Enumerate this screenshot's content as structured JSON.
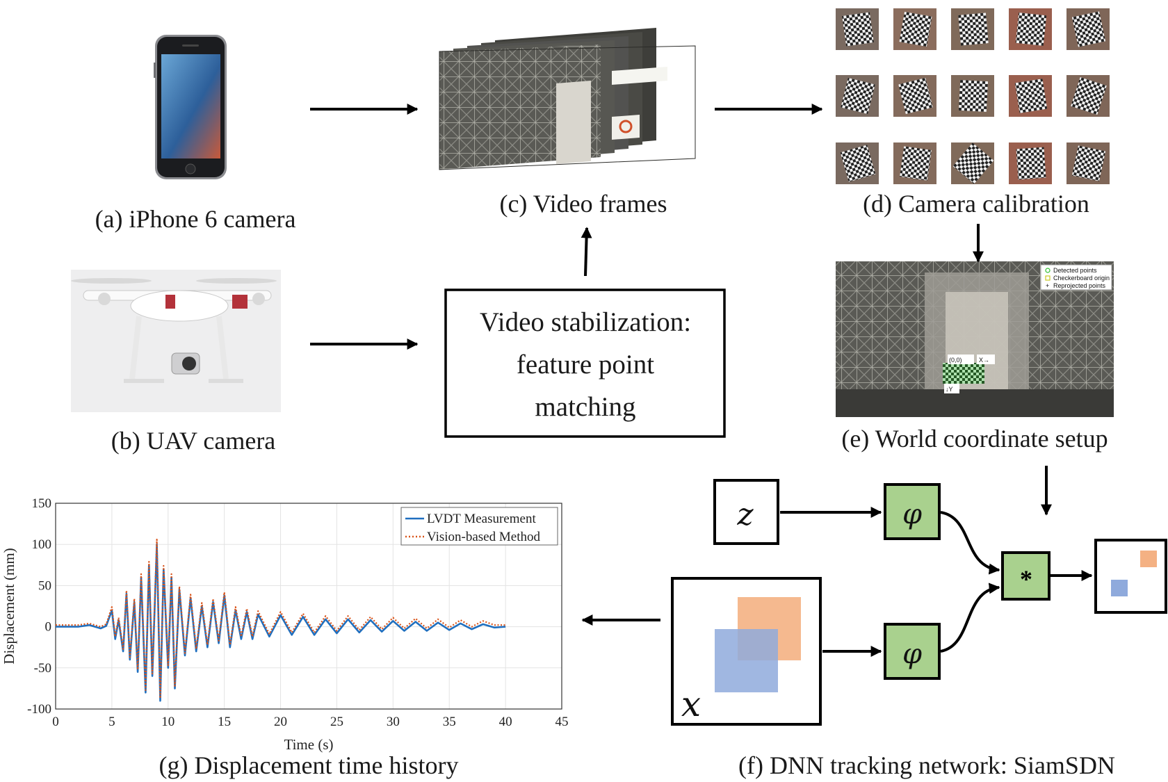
{
  "captions": {
    "a": "(a) iPhone 6 camera",
    "b": "(b) UAV camera",
    "c": "(c) Video frames",
    "d": "(d) Camera calibration",
    "e": "(e) World coordinate setup",
    "f": "(f) DNN tracking network: SiamSDN",
    "g": "(g) Displacement time history"
  },
  "stabilization_box": {
    "line1": "Video stabilization:",
    "line2": "feature point",
    "line3": "matching"
  },
  "siamese": {
    "z_label": "z",
    "x_label": "x",
    "phi_label": "φ",
    "corr_label": "*",
    "colors": {
      "block_fill": "#a9d18e",
      "target_orange": "#f4b183",
      "search_blue": "#8faadc"
    }
  },
  "world_setup": {
    "legend": [
      "Detected points",
      "Checkerboard origin",
      "Reprojected points"
    ],
    "origin_label": "(0,0)",
    "x_axis": "X→",
    "y_axis": "↓Y"
  },
  "chart_data": {
    "type": "line",
    "title": "",
    "xlabel": "Time (s)",
    "ylabel": "Displacement (mm)",
    "xlim": [
      0,
      45
    ],
    "ylim": [
      -100,
      150
    ],
    "xticks": [
      0,
      5,
      10,
      15,
      20,
      25,
      30,
      35,
      40,
      45
    ],
    "yticks": [
      150,
      100,
      50,
      0,
      -50,
      -100
    ],
    "grid": true,
    "legend_position": "top-right",
    "series": [
      {
        "name": "LVDT Measurement",
        "color": "#1f6fbf",
        "style": "solid",
        "x": [
          0,
          2,
          3,
          4,
          4.5,
          5,
          5.3,
          5.6,
          6,
          6.3,
          6.6,
          7,
          7.3,
          7.6,
          8,
          8.3,
          8.6,
          9,
          9.3,
          9.6,
          10,
          10.3,
          10.6,
          11,
          11.5,
          12,
          12.5,
          13,
          13.5,
          14,
          14.5,
          15,
          15.5,
          16,
          16.5,
          17,
          17.5,
          18,
          19,
          20,
          21,
          22,
          23,
          24,
          25,
          26,
          27,
          28,
          29,
          30,
          31,
          32,
          33,
          34,
          35,
          36,
          37,
          38,
          39,
          40
        ],
        "y": [
          0,
          0,
          2,
          -2,
          1,
          20,
          -15,
          8,
          -30,
          40,
          -40,
          30,
          -55,
          60,
          -80,
          75,
          -60,
          100,
          -90,
          70,
          -50,
          60,
          -75,
          45,
          -35,
          35,
          -30,
          25,
          -25,
          30,
          -20,
          38,
          -25,
          20,
          -15,
          18,
          -15,
          15,
          -12,
          14,
          -10,
          12,
          -10,
          9,
          -8,
          9,
          -7,
          8,
          -6,
          7,
          -5,
          6,
          -5,
          5,
          -4,
          4,
          -3,
          3,
          -1,
          0
        ]
      },
      {
        "name": "Vision-based Method",
        "color": "#d95319",
        "style": "dotted",
        "x": [
          0,
          2,
          3,
          4,
          4.5,
          5,
          5.3,
          5.6,
          6,
          6.3,
          6.6,
          7,
          7.3,
          7.6,
          8,
          8.3,
          8.6,
          9,
          9.3,
          9.6,
          10,
          10.3,
          10.6,
          11,
          11.5,
          12,
          12.5,
          13,
          13.5,
          14,
          14.5,
          15,
          15.5,
          16,
          16.5,
          17,
          17.5,
          18,
          19,
          20,
          21,
          22,
          23,
          24,
          25,
          26,
          27,
          28,
          29,
          30,
          31,
          32,
          33,
          34,
          35,
          36,
          37,
          38,
          39,
          40
        ],
        "y": [
          2,
          2,
          4,
          0,
          3,
          24,
          -12,
          11,
          -27,
          44,
          -37,
          34,
          -52,
          64,
          -77,
          79,
          -57,
          106,
          -87,
          74,
          -47,
          64,
          -72,
          49,
          -32,
          39,
          -27,
          29,
          -22,
          34,
          -17,
          42,
          -22,
          24,
          -12,
          22,
          -12,
          19,
          -9,
          18,
          -7,
          16,
          -7,
          13,
          -5,
          13,
          -4,
          12,
          -3,
          11,
          -2,
          10,
          -2,
          9,
          -1,
          8,
          0,
          7,
          2,
          2
        ]
      }
    ]
  }
}
